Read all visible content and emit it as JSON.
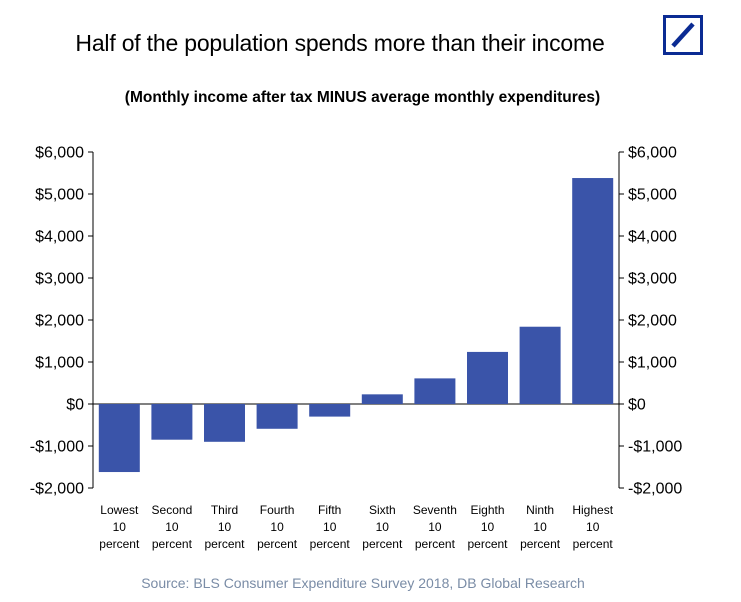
{
  "header": {
    "title": "Half of the population spends more than their income",
    "subtitle": "(Monthly income after tax MINUS average monthly expenditures)"
  },
  "footer": {
    "source": "Source: BLS Consumer Expenditure Survey 2018, DB Global Research"
  },
  "colors": {
    "bar": "#3a54a9",
    "logo": "#0b2b93",
    "source_text": "#7a8ca6"
  },
  "chart_data": {
    "type": "bar",
    "title": "Half of the population spends more than their income",
    "subtitle": "(Monthly income after tax MINUS average monthly expenditures)",
    "categories": [
      [
        "Lowest",
        "10",
        "percent"
      ],
      [
        "Second",
        "10",
        "percent"
      ],
      [
        "Third",
        "10",
        "percent"
      ],
      [
        "Fourth",
        "10",
        "percent"
      ],
      [
        "Fifth",
        "10",
        "percent"
      ],
      [
        "Sixth",
        "10",
        "percent"
      ],
      [
        "Seventh",
        "10",
        "percent"
      ],
      [
        "Eighth",
        "10",
        "percent"
      ],
      [
        "Ninth",
        "10",
        "percent"
      ],
      [
        "Highest",
        "10",
        "percent"
      ]
    ],
    "values": [
      -1620,
      -850,
      -900,
      -590,
      -300,
      230,
      610,
      1240,
      1840,
      5380
    ],
    "ylim": [
      -2000,
      6000
    ],
    "ytick_values": [
      -2000,
      -1000,
      0,
      1000,
      2000,
      3000,
      4000,
      5000,
      6000
    ],
    "ytick_labels": [
      "-$2,000",
      "-$1,000",
      "$0",
      "$1,000",
      "$2,000",
      "$3,000",
      "$4,000",
      "$5,000",
      "$6,000"
    ],
    "dual_y_axis": true,
    "grid": false,
    "legend": "none"
  }
}
